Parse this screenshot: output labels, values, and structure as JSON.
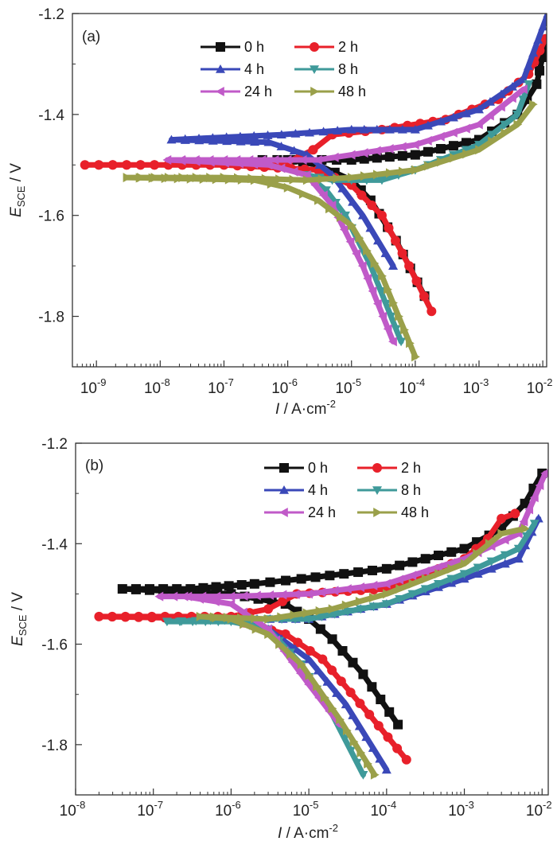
{
  "chart_data": [
    {
      "type": "line",
      "panel_label": "(a)",
      "xlabel": {
        "symbol": "I",
        "unit": " / A·cm",
        "unit_exp": "-2"
      },
      "ylabel": {
        "symbol": "E",
        "sub": "SCE",
        "unit": " / V"
      },
      "x_scale": "log",
      "xlim": [
        4.2e-10,
        0.0115
      ],
      "ylim": [
        -1.9,
        -1.2
      ],
      "xticks": [
        {
          "base": "10",
          "exp": "-9"
        },
        {
          "base": "10",
          "exp": "-8"
        },
        {
          "base": "10",
          "exp": "-7"
        },
        {
          "base": "10",
          "exp": "-6"
        },
        {
          "base": "10",
          "exp": "-5"
        },
        {
          "base": "10",
          "exp": "-4"
        },
        {
          "base": "10",
          "exp": "-3"
        },
        {
          "base": "10",
          "exp": "-2"
        }
      ],
      "xtick_values": [
        1e-09,
        1e-08,
        1e-07,
        1e-06,
        1e-05,
        0.0001,
        0.001,
        0.01
      ],
      "yticks": [
        "-1.2",
        "-1.4",
        "-1.6",
        "-1.8"
      ],
      "ytick_values": [
        -1.2,
        -1.4,
        -1.6,
        -1.8
      ],
      "grid": false,
      "legend_placement": "top-center",
      "series": [
        {
          "name": "0 h",
          "color": "#111111",
          "marker": "square",
          "points": [
            [
              0.00014,
              -1.76
            ],
            [
              5e-05,
              -1.65
            ],
            [
              2e-05,
              -1.57
            ],
            [
              1e-05,
              -1.53
            ],
            [
              3e-06,
              -1.5
            ],
            [
              1e-06,
              -1.49
            ],
            [
              4e-07,
              -1.49
            ],
            [
              2e-06,
              -1.49
            ],
            [
              1e-05,
              -1.49
            ],
            [
              0.0001,
              -1.48
            ],
            [
              0.001,
              -1.45
            ],
            [
              0.004,
              -1.4
            ],
            [
              0.008,
              -1.34
            ],
            [
              0.011,
              -1.26
            ]
          ]
        },
        {
          "name": "2 h",
          "color": "#e8202a",
          "marker": "circle",
          "points": [
            [
              0.00018,
              -1.79
            ],
            [
              8e-05,
              -1.7
            ],
            [
              3e-05,
              -1.6
            ],
            [
              1e-05,
              -1.54
            ],
            [
              3e-06,
              -1.51
            ],
            [
              1e-07,
              -1.5
            ],
            [
              6.6e-10,
              -1.5
            ],
            [
              1e-07,
              -1.5
            ],
            [
              1e-06,
              -1.495
            ],
            [
              2.5e-06,
              -1.47
            ],
            [
              5e-06,
              -1.44
            ],
            [
              3e-05,
              -1.43
            ],
            [
              0.0003,
              -1.41
            ],
            [
              0.002,
              -1.37
            ],
            [
              0.006,
              -1.32
            ],
            [
              0.011,
              -1.25
            ]
          ]
        },
        {
          "name": "4 h",
          "color": "#3a48b8",
          "marker": "triangle-up",
          "points": [
            [
              4.5e-05,
              -1.7
            ],
            [
              1.5e-05,
              -1.6
            ],
            [
              5e-06,
              -1.52
            ],
            [
              2e-06,
              -1.48
            ],
            [
              5e-07,
              -1.455
            ],
            [
              1.5e-08,
              -1.45
            ],
            [
              8e-07,
              -1.44
            ],
            [
              1e-05,
              -1.43
            ],
            [
              0.0001,
              -1.43
            ],
            [
              0.001,
              -1.39
            ],
            [
              0.005,
              -1.33
            ],
            [
              0.012,
              -1.2
            ]
          ]
        },
        {
          "name": "8 h",
          "color": "#3f9a9a",
          "marker": "triangle-down",
          "points": [
            [
              6e-05,
              -1.85
            ],
            [
              2e-05,
              -1.7
            ],
            [
              8e-06,
              -1.6
            ],
            [
              4e-06,
              -1.55
            ],
            [
              2e-06,
              -1.52
            ],
            [
              5e-06,
              -1.53
            ],
            [
              1e-05,
              -1.53
            ],
            [
              3e-05,
              -1.53
            ],
            [
              0.0001,
              -1.51
            ],
            [
              0.001,
              -1.46
            ],
            [
              0.004,
              -1.4
            ],
            [
              0.006,
              -1.34
            ]
          ]
        },
        {
          "name": "24 h",
          "color": "#c05ac8",
          "marker": "triangle-left",
          "points": [
            [
              4.5e-05,
              -1.85
            ],
            [
              1.5e-05,
              -1.7
            ],
            [
              5e-06,
              -1.58
            ],
            [
              2e-06,
              -1.52
            ],
            [
              5e-07,
              -1.5
            ],
            [
              1.3e-08,
              -1.49
            ],
            [
              1e-07,
              -1.49
            ],
            [
              1e-06,
              -1.49
            ],
            [
              3e-06,
              -1.49
            ],
            [
              1e-05,
              -1.48
            ],
            [
              0.0001,
              -1.46
            ],
            [
              0.001,
              -1.42
            ],
            [
              0.005,
              -1.35
            ]
          ]
        },
        {
          "name": "48 h",
          "color": "#9aa04a",
          "marker": "triangle-right",
          "points": [
            [
              0.0001,
              -1.88
            ],
            [
              3e-05,
              -1.72
            ],
            [
              1e-05,
              -1.62
            ],
            [
              3e-06,
              -1.57
            ],
            [
              1e-06,
              -1.545
            ],
            [
              3e-07,
              -1.53
            ],
            [
              3e-09,
              -1.525
            ],
            [
              1e-07,
              -1.525
            ],
            [
              2e-06,
              -1.53
            ],
            [
              1e-05,
              -1.525
            ],
            [
              0.0001,
              -1.51
            ],
            [
              0.001,
              -1.47
            ],
            [
              0.004,
              -1.42
            ],
            [
              0.007,
              -1.38
            ]
          ]
        }
      ]
    },
    {
      "type": "line",
      "panel_label": "(b)",
      "xlabel": {
        "symbol": "I",
        "unit": " / A·cm",
        "unit_exp": "-2"
      },
      "ylabel": {
        "symbol": "E",
        "sub": "SCE",
        "unit": " / V"
      },
      "x_scale": "log",
      "xlim": [
        1e-08,
        0.012
      ],
      "ylim": [
        -1.9,
        -1.2
      ],
      "xticks": [
        {
          "base": "10",
          "exp": "-8"
        },
        {
          "base": "10",
          "exp": "-7"
        },
        {
          "base": "10",
          "exp": "-6"
        },
        {
          "base": "10",
          "exp": "-5"
        },
        {
          "base": "10",
          "exp": "-4"
        },
        {
          "base": "10",
          "exp": "-3"
        },
        {
          "base": "10",
          "exp": "-2"
        }
      ],
      "xtick_values": [
        1e-08,
        1e-07,
        1e-06,
        1e-05,
        0.0001,
        0.001,
        0.01
      ],
      "yticks": [
        "-1.2",
        "-1.4",
        "-1.6",
        "-1.8"
      ],
      "ytick_values": [
        -1.2,
        -1.4,
        -1.6,
        -1.8
      ],
      "grid": false,
      "legend_placement": "top-right",
      "series": [
        {
          "name": "0 h",
          "color": "#111111",
          "marker": "square",
          "points": [
            [
              0.00014,
              -1.76
            ],
            [
              5e-05,
              -1.66
            ],
            [
              2e-05,
              -1.59
            ],
            [
              1e-05,
              -1.55
            ],
            [
              5e-06,
              -1.52
            ],
            [
              1e-06,
              -1.5
            ],
            [
              4e-08,
              -1.49
            ],
            [
              3e-07,
              -1.49
            ],
            [
              2e-06,
              -1.48
            ],
            [
              8e-06,
              -1.47
            ],
            [
              0.0001,
              -1.45
            ],
            [
              0.001,
              -1.41
            ],
            [
              0.003,
              -1.37
            ],
            [
              0.006,
              -1.32
            ],
            [
              0.01,
              -1.26
            ]
          ]
        },
        {
          "name": "2 h",
          "color": "#e8202a",
          "marker": "circle",
          "points": [
            [
              0.00018,
              -1.83
            ],
            [
              6e-05,
              -1.74
            ],
            [
              1.5e-05,
              -1.63
            ],
            [
              5e-06,
              -1.58
            ],
            [
              1e-06,
              -1.55
            ],
            [
              2e-08,
              -1.545
            ],
            [
              1e-06,
              -1.545
            ],
            [
              3e-06,
              -1.53
            ],
            [
              7e-06,
              -1.5
            ],
            [
              0.0001,
              -1.49
            ],
            [
              0.001,
              -1.43
            ],
            [
              0.002,
              -1.39
            ],
            [
              0.003,
              -1.35
            ],
            [
              0.0045,
              -1.34
            ]
          ]
        },
        {
          "name": "4 h",
          "color": "#3a48b8",
          "marker": "triangle-up",
          "points": [
            [
              0.0001,
              -1.85
            ],
            [
              3e-05,
              -1.72
            ],
            [
              1e-05,
              -1.63
            ],
            [
              3e-06,
              -1.57
            ],
            [
              1e-06,
              -1.55
            ],
            [
              1e-05,
              -1.55
            ],
            [
              0.0001,
              -1.52
            ],
            [
              0.001,
              -1.47
            ],
            [
              0.005,
              -1.43
            ],
            [
              0.009,
              -1.35
            ]
          ]
        },
        {
          "name": "8 h",
          "color": "#3f9a9a",
          "marker": "triangle-down",
          "points": [
            [
              5e-05,
              -1.86
            ],
            [
              2e-05,
              -1.74
            ],
            [
              8e-06,
              -1.64
            ],
            [
              3e-06,
              -1.57
            ],
            [
              1e-06,
              -1.555
            ],
            [
              1.5e-07,
              -1.555
            ],
            [
              3e-06,
              -1.55
            ],
            [
              1e-05,
              -1.55
            ],
            [
              0.0001,
              -1.52
            ],
            [
              0.001,
              -1.46
            ],
            [
              0.005,
              -1.41
            ],
            [
              0.008,
              -1.36
            ]
          ]
        },
        {
          "name": "24 h",
          "color": "#c05ac8",
          "marker": "triangle-left",
          "points": [
            [
              2.5e-05,
              -1.76
            ],
            [
              1e-05,
              -1.68
            ],
            [
              3e-06,
              -1.57
            ],
            [
              1e-06,
              -1.52
            ],
            [
              2.5e-07,
              -1.505
            ],
            [
              1.2e-07,
              -1.505
            ],
            [
              1e-06,
              -1.505
            ],
            [
              1e-05,
              -1.5
            ],
            [
              0.0001,
              -1.48
            ],
            [
              0.001,
              -1.43
            ],
            [
              0.005,
              -1.38
            ],
            [
              0.011,
              -1.26
            ]
          ]
        },
        {
          "name": "48 h",
          "color": "#9aa04a",
          "marker": "triangle-right",
          "points": [
            [
              7e-05,
              -1.86
            ],
            [
              2.5e-05,
              -1.75
            ],
            [
              8e-06,
              -1.64
            ],
            [
              3e-06,
              -1.58
            ],
            [
              1e-06,
              -1.55
            ],
            [
              4e-07,
              -1.545
            ],
            [
              3e-06,
              -1.55
            ],
            [
              2e-05,
              -1.53
            ],
            [
              0.0001,
              -1.5
            ],
            [
              0.001,
              -1.44
            ],
            [
              0.003,
              -1.38
            ],
            [
              0.006,
              -1.37
            ]
          ]
        }
      ]
    }
  ]
}
